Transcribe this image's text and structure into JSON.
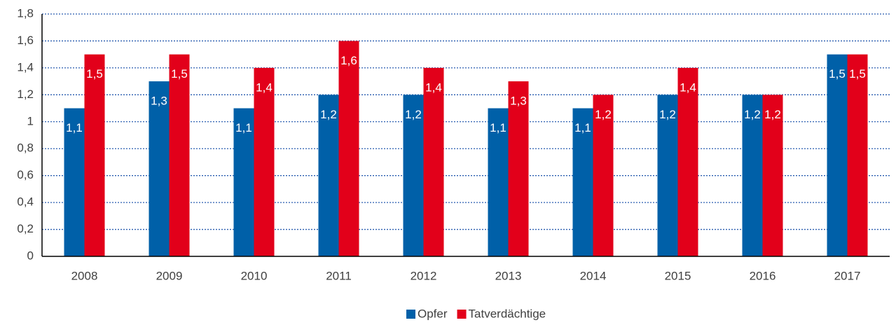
{
  "chart_data": {
    "type": "bar",
    "categories": [
      "2008",
      "2009",
      "2010",
      "2011",
      "2012",
      "2013",
      "2014",
      "2015",
      "2016",
      "2017"
    ],
    "series": [
      {
        "name": "Opfer",
        "color": "#0060a8",
        "values": [
          1.1,
          1.3,
          1.1,
          1.2,
          1.2,
          1.1,
          1.1,
          1.2,
          1.2,
          1.5
        ],
        "value_labels": [
          "1,1",
          "1,3",
          "1,1",
          "1,2",
          "1,2",
          "1,1",
          "1,1",
          "1,2",
          "1,2",
          "1,5"
        ]
      },
      {
        "name": "Tatverdächtige",
        "color": "#e2001a",
        "values": [
          1.5,
          1.5,
          1.4,
          1.6,
          1.4,
          1.3,
          1.2,
          1.4,
          1.2,
          1.5
        ],
        "value_labels": [
          "1,5",
          "1,5",
          "1,4",
          "1,6",
          "1,4",
          "1,3",
          "1,2",
          "1,4",
          "1,2",
          "1,5"
        ]
      }
    ],
    "ylim": [
      0,
      1.8
    ],
    "yticks": [
      0,
      {
        "value": 0.2,
        "label": "0,2"
      },
      {
        "value": 0.4,
        "label": "0,4"
      },
      {
        "value": 0.6,
        "label": "0,6"
      },
      {
        "value": 0.8,
        "label": "0,8"
      },
      1,
      {
        "value": 1.2,
        "label": "1,2"
      },
      {
        "value": 1.4,
        "label": "1,4"
      },
      {
        "value": 1.6,
        "label": "1,6"
      },
      {
        "value": 1.8,
        "label": "1,8"
      }
    ],
    "grid": true,
    "legend": "bottom"
  }
}
